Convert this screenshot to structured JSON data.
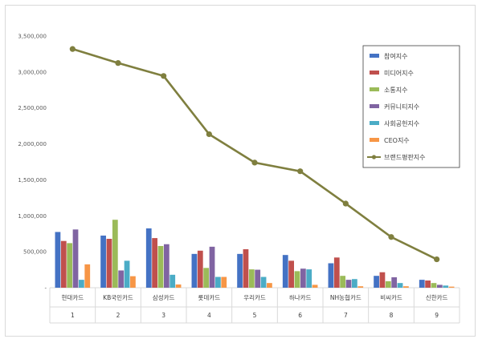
{
  "chart_data": {
    "type": "bar",
    "title": "",
    "xlabel": "",
    "ylabel": "",
    "ylim": [
      0,
      3500000
    ],
    "yticks": [
      "-",
      "500,000",
      "1,000,000",
      "1,500,000",
      "2,000,000",
      "2,500,000",
      "3,000,000",
      "3,500,000"
    ],
    "categories": [
      "현대카드",
      "KB국민카드",
      "삼성카드",
      "롯데카드",
      "우리카드",
      "하나카드",
      "NH농협카드",
      "비씨카드",
      "신한카드"
    ],
    "ranks": [
      "1",
      "2",
      "3",
      "4",
      "5",
      "6",
      "7",
      "8",
      "9"
    ],
    "series": [
      {
        "name": "참여지수",
        "color": "#4472c4",
        "values": [
          775000,
          725000,
          825000,
          470000,
          470000,
          455000,
          340000,
          165000,
          110000
        ]
      },
      {
        "name": "미디어지수",
        "color": "#c0504d",
        "values": [
          650000,
          680000,
          690000,
          515000,
          535000,
          375000,
          420000,
          215000,
          100000
        ]
      },
      {
        "name": "소통지수",
        "color": "#9bbb59",
        "values": [
          620000,
          945000,
          580000,
          275000,
          255000,
          230000,
          165000,
          90000,
          65000
        ]
      },
      {
        "name": "커뮤니티지수",
        "color": "#8064a2",
        "values": [
          810000,
          240000,
          605000,
          570000,
          250000,
          265000,
          110000,
          145000,
          40000
        ]
      },
      {
        "name": "사회공헌지수",
        "color": "#4bacc6",
        "values": [
          110000,
          375000,
          180000,
          150000,
          150000,
          255000,
          120000,
          65000,
          30000
        ]
      },
      {
        "name": "CEO지수",
        "color": "#f79646",
        "values": [
          325000,
          160000,
          45000,
          150000,
          65000,
          40000,
          20000,
          20000,
          15000
        ]
      }
    ],
    "line_series": {
      "name": "브랜드평판지수",
      "color": "#7f7f3f",
      "values": [
        3320000,
        3125000,
        2945000,
        2135000,
        1740000,
        1620000,
        1170000,
        705000,
        395000
      ]
    },
    "grid": false,
    "legend_position": "top-right"
  }
}
